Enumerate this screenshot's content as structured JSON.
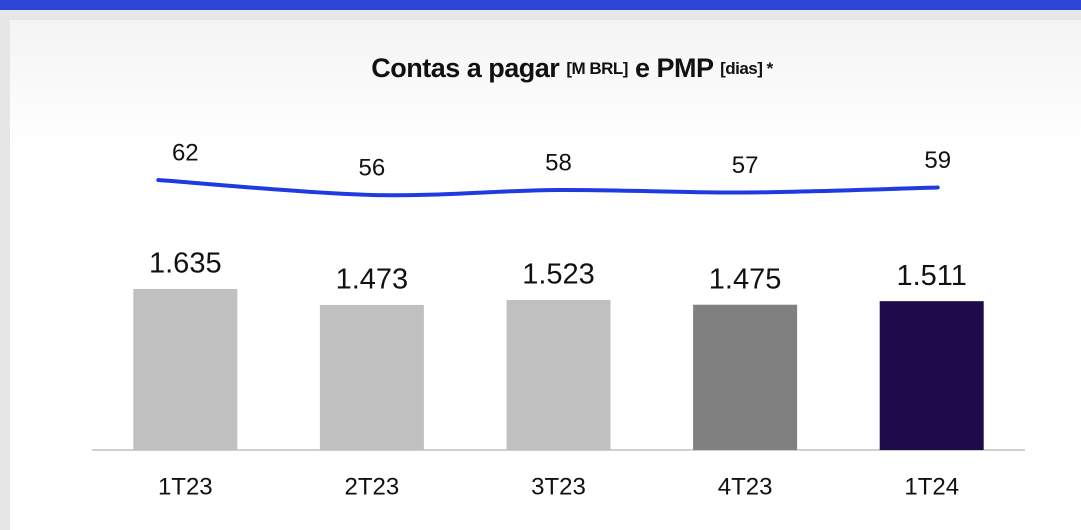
{
  "chart_data": {
    "type": "bar_line",
    "title": [
      "Contas a pagar",
      "[M BRL]",
      "e PMP",
      "[dias] *"
    ],
    "categories": [
      "1T23",
      "2T23",
      "3T23",
      "4T23",
      "1T24"
    ],
    "series": [
      {
        "values": [
          1635,
          1473,
          1523,
          1475,
          1511
        ],
        "value_labels": [
          "1.635",
          "1.473",
          "1.523",
          "1.475",
          "1.511"
        ],
        "colors": [
          "#c0c0c0",
          "#c0c0c0",
          "#c0c0c0",
          "#808080",
          "#1f0a4a"
        ]
      },
      {
        "values": [
          62,
          56,
          58,
          57,
          59
        ],
        "color": "#1f3be0",
        "axis": "y2"
      }
    ],
    "ylim": [
      0,
      2000
    ],
    "y2lim": [
      30,
      64
    ]
  }
}
